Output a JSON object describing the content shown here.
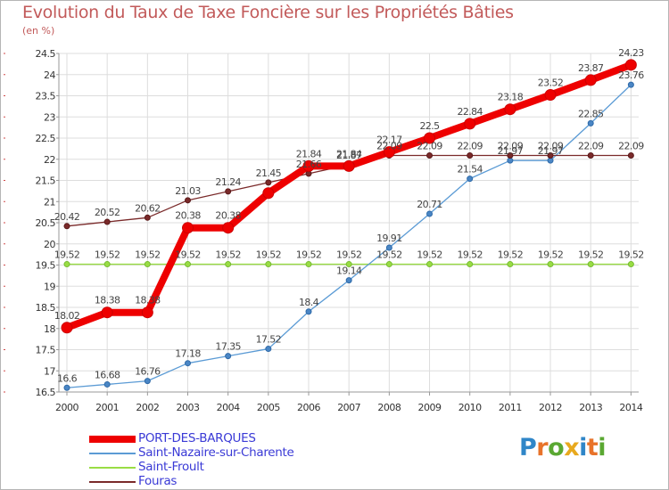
{
  "title": "Evolution du Taux de Taxe Foncière sur les Propriétés Bâties",
  "unit_label": "(en %)",
  "logo": {
    "parts": [
      "P",
      "r",
      "o",
      "x",
      "i",
      "t",
      "i"
    ],
    "colors": [
      "#2f86c8",
      "#e8732a",
      "#5aa832",
      "#e8a91e",
      "#2f86c8",
      "#e8732a",
      "#5aa832"
    ]
  },
  "chart_data": {
    "type": "line",
    "title": "Evolution du Taux de Taxe Foncière sur les Propriétés Bâties",
    "ylabel": "(en %)",
    "xlabel": "",
    "x": [
      "2000",
      "2001",
      "2002",
      "2003",
      "2004",
      "2005",
      "2006",
      "2007",
      "2008",
      "2009",
      "2010",
      "2011",
      "2012",
      "2013",
      "2014"
    ],
    "ylim": [
      16.5,
      24.5
    ],
    "yticks": [
      "16.5",
      "17",
      "17.5",
      "18",
      "18.5",
      "19",
      "19.5",
      "20",
      "20.5",
      "21",
      "21.5",
      "22",
      "22.5",
      "23",
      "23.5",
      "24",
      "24.5"
    ],
    "grid": true,
    "legend_position": "bottom-left",
    "series": [
      {
        "name": "PORT-DES-BARQUES",
        "color": "#ee0000",
        "values": [
          18.02,
          18.38,
          18.38,
          20.38,
          20.38,
          21.2,
          21.84,
          21.84,
          22.17,
          22.5,
          22.84,
          23.18,
          23.52,
          23.87,
          24.23
        ],
        "labels": [
          "18.02",
          "18.38",
          "18.38",
          "20.38",
          "20.38",
          "",
          "21.84",
          "21.84",
          "22.17",
          "22.5",
          "22.84",
          "23.18",
          "23.52",
          "23.87",
          "24.23"
        ]
      },
      {
        "name": "Saint-Nazaire-sur-Charente",
        "color": "#5b9bd5",
        "values": [
          16.6,
          16.68,
          16.76,
          17.18,
          17.35,
          17.52,
          18.4,
          19.14,
          19.91,
          20.71,
          21.54,
          21.97,
          21.97,
          22.85,
          23.76
        ],
        "labels": [
          "16.6",
          "16.68",
          "16.76",
          "17.18",
          "17.35",
          "17.52",
          "18.4",
          "19.14",
          "19.91",
          "20.71",
          "21.54",
          "21.97",
          "21.97",
          "22.85",
          "23.76"
        ]
      },
      {
        "name": "Saint-Froult",
        "color": "#99dd44",
        "values": [
          19.52,
          19.52,
          19.52,
          19.52,
          19.52,
          19.52,
          19.52,
          19.52,
          19.52,
          19.52,
          19.52,
          19.52,
          19.52,
          19.52,
          19.52
        ],
        "labels": [
          "19.52",
          "19.52",
          "19.52",
          "19.52",
          "19.52",
          "19.52",
          "19.52",
          "19.52",
          "19.52",
          "19.52",
          "19.52",
          "19.52",
          "19.52",
          "19.52",
          "19.52"
        ]
      },
      {
        "name": "Fouras",
        "color": "#7a2a2a",
        "values": [
          20.42,
          20.52,
          20.62,
          21.03,
          21.24,
          21.45,
          21.66,
          21.87,
          22.09,
          22.09,
          22.09,
          22.09,
          22.09,
          22.09,
          22.09
        ],
        "labels": [
          "20.42",
          "20.52",
          "20.62",
          "21.03",
          "21.24",
          "21.45",
          "21.66",
          "21.87",
          "22.09",
          "22.09",
          "22.09",
          "22.09",
          "22.09",
          "22.09",
          "22.09"
        ]
      }
    ]
  }
}
